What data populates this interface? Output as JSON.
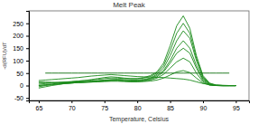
{
  "chart_data": {
    "type": "line",
    "title": "Melt Peak",
    "x_label": "Temperature, Celsius",
    "y_label": "-d(RFU)/dT",
    "x": [
      65,
      66,
      67,
      68,
      69,
      70,
      71,
      72,
      73,
      74,
      75,
      76,
      77,
      78,
      79,
      80,
      81,
      82,
      83,
      84,
      85,
      86,
      87,
      88,
      89,
      90,
      91,
      92,
      93,
      94,
      95
    ],
    "series": [
      {
        "color": "#1a8a1a",
        "values": [
          5,
          8,
          10,
          12,
          14,
          16,
          18,
          20,
          22,
          25,
          28,
          30,
          30,
          28,
          27,
          28,
          32,
          40,
          55,
          90,
          160,
          240,
          280,
          230,
          120,
          40,
          10,
          2,
          0,
          0,
          0
        ]
      },
      {
        "color": "#1a8a1a",
        "values": [
          0,
          3,
          6,
          9,
          12,
          15,
          18,
          20,
          24,
          28,
          32,
          35,
          33,
          30,
          28,
          27,
          30,
          36,
          50,
          80,
          140,
          210,
          250,
          210,
          110,
          35,
          8,
          1,
          0,
          0,
          0
        ]
      },
      {
        "color": "#1a8a1a",
        "values": [
          10,
          10,
          11,
          12,
          13,
          14,
          15,
          16,
          18,
          20,
          22,
          24,
          25,
          24,
          22,
          22,
          25,
          30,
          45,
          70,
          120,
          180,
          220,
          190,
          100,
          30,
          6,
          0,
          -2,
          -2,
          -2
        ]
      },
      {
        "color": "#1a8a1a",
        "values": [
          -5,
          0,
          3,
          6,
          8,
          10,
          12,
          14,
          16,
          18,
          20,
          22,
          22,
          20,
          19,
          20,
          22,
          28,
          40,
          60,
          100,
          150,
          180,
          150,
          80,
          25,
          5,
          0,
          0,
          0,
          0
        ]
      },
      {
        "color": "#1a8a1a",
        "values": [
          15,
          14,
          13,
          12,
          12,
          12,
          13,
          14,
          15,
          17,
          19,
          21,
          22,
          20,
          18,
          18,
          20,
          25,
          35,
          55,
          90,
          130,
          150,
          130,
          70,
          20,
          3,
          0,
          0,
          0,
          0
        ]
      },
      {
        "color": "#1a8a1a",
        "values": [
          0,
          2,
          4,
          6,
          8,
          10,
          12,
          13,
          14,
          16,
          18,
          20,
          20,
          18,
          16,
          16,
          18,
          22,
          30,
          45,
          70,
          95,
          110,
          95,
          50,
          15,
          2,
          0,
          0,
          0,
          0
        ]
      },
      {
        "color": "#1a8a1a",
        "values": [
          20,
          22,
          24,
          26,
          28,
          30,
          32,
          35,
          38,
          40,
          42,
          44,
          42,
          40,
          38,
          36,
          35,
          34,
          33,
          32,
          30,
          28,
          26,
          22,
          15,
          8,
          4,
          2,
          1,
          0,
          0
        ]
      },
      {
        "color": "#1a8a1a",
        "values": [
          -10,
          -5,
          0,
          4,
          8,
          10,
          12,
          13,
          14,
          15,
          16,
          17,
          17,
          16,
          15,
          15,
          16,
          18,
          22,
          30,
          42,
          55,
          60,
          52,
          30,
          10,
          2,
          0,
          0,
          0,
          0
        ]
      },
      {
        "color": "#0d6e0d",
        "values": [
          null,
          50,
          50,
          50,
          50,
          50,
          50,
          50,
          50,
          50,
          50,
          50,
          50,
          50,
          50,
          50,
          50,
          50,
          50,
          50,
          50,
          50,
          50,
          50,
          50,
          50,
          50,
          50,
          50,
          50,
          null
        ]
      }
    ],
    "xlim": [
      63.5,
      97
    ],
    "xticks": [
      65,
      70,
      75,
      80,
      85,
      90,
      95
    ],
    "ylim": [
      -60,
      300
    ],
    "yticks": [
      -50,
      0,
      50,
      100,
      150,
      200,
      250
    ],
    "grid": false
  }
}
